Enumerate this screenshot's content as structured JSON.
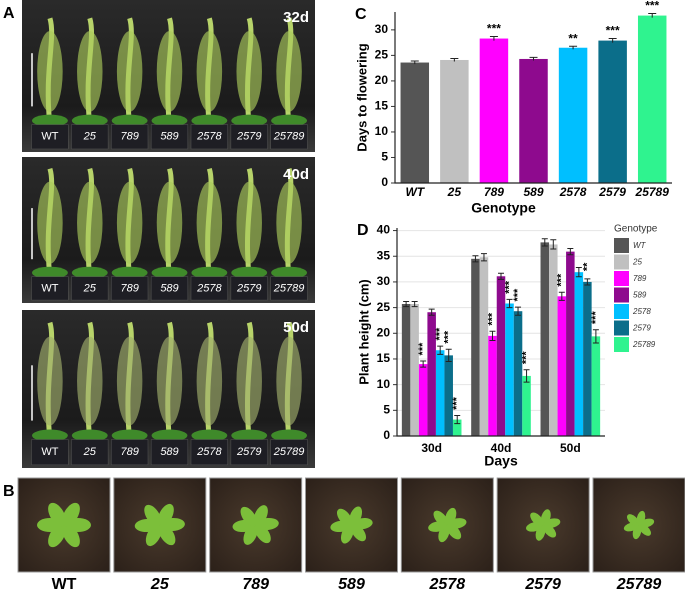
{
  "panels": {
    "A": {
      "label": "A",
      "photos": [
        {
          "day": "32d",
          "pots": [
            "WT",
            "25",
            "789",
            "589",
            "2578",
            "2579",
            "25789"
          ]
        },
        {
          "day": "40d",
          "pots": [
            "WT",
            "25",
            "789",
            "589",
            "2578",
            "2579",
            "25789"
          ]
        },
        {
          "day": "50d",
          "pots": [
            "WT",
            "25",
            "789",
            "589",
            "2578",
            "2579",
            "25789"
          ]
        }
      ]
    },
    "B": {
      "label": "B",
      "genotypes": [
        "WT",
        "25",
        "789",
        "589",
        "2578",
        "2579",
        "25789"
      ]
    }
  },
  "chart_data": [
    {
      "type": "bar",
      "panel_label": "C",
      "x_label": "Genotype",
      "y_label": "Days to flowering",
      "categories": [
        "WT",
        "25",
        "789",
        "589",
        "2578",
        "2579",
        "25789"
      ],
      "values": [
        23.6,
        24.1,
        28.3,
        24.3,
        26.5,
        27.9,
        32.8
      ],
      "errors": [
        0.3,
        0.3,
        0.4,
        0.3,
        0.3,
        0.4,
        0.4
      ],
      "annotations": [
        null,
        null,
        "***",
        null,
        "**",
        "***",
        "***"
      ],
      "colors": [
        "#555555",
        "#c0c0c0",
        "#ff00ff",
        "#8e0a8e",
        "#00bfff",
        "#0b6e8a",
        "#2ff38f"
      ],
      "ylim": [
        0,
        33.5
      ],
      "yticks": [
        0,
        5,
        10,
        15,
        20,
        25,
        30
      ],
      "grid": false
    },
    {
      "type": "grouped_bar",
      "panel_label": "D",
      "x_label": "Days",
      "y_label": "Plant height (cm)",
      "legend_title": "Genotype",
      "legend": "right",
      "categories": [
        "30d",
        "40d",
        "50d"
      ],
      "series": [
        {
          "name": "WT",
          "color": "#555555",
          "values": [
            25.7,
            34.5,
            37.7
          ],
          "errors": [
            0.5,
            0.6,
            0.7
          ],
          "annotations": [
            null,
            null,
            null
          ]
        },
        {
          "name": "25",
          "color": "#c0c0c0",
          "values": [
            25.7,
            34.8,
            37.3
          ],
          "errors": [
            0.5,
            0.7,
            0.9
          ],
          "annotations": [
            null,
            null,
            null
          ]
        },
        {
          "name": "789",
          "color": "#ff00ff",
          "values": [
            14,
            19.5,
            27.2
          ],
          "errors": [
            0.6,
            0.9,
            0.8
          ],
          "annotations": [
            "***",
            "***",
            "***"
          ]
        },
        {
          "name": "589",
          "color": "#8e0a8e",
          "values": [
            24.1,
            31.1,
            35.9
          ],
          "errors": [
            0.6,
            0.6,
            0.6
          ],
          "annotations": [
            null,
            null,
            null
          ]
        },
        {
          "name": "2578",
          "color": "#00bfff",
          "values": [
            16.7,
            25.8,
            31.9
          ],
          "errors": [
            0.8,
            0.8,
            0.9
          ],
          "annotations": [
            "***",
            "***",
            null
          ]
        },
        {
          "name": "2579",
          "color": "#0b6e8a",
          "values": [
            15.7,
            24.3,
            30
          ],
          "errors": [
            1.2,
            0.8,
            0.6
          ],
          "annotations": [
            "***",
            "***",
            "**"
          ]
        },
        {
          "name": "25789",
          "color": "#2ff38f",
          "values": [
            3.2,
            11.7,
            19.4
          ],
          "errors": [
            0.8,
            1.2,
            1.3
          ],
          "annotations": [
            "***",
            "***",
            "***"
          ]
        }
      ],
      "ylim": [
        0,
        40.5
      ],
      "yticks": [
        0,
        5,
        10,
        15,
        20,
        25,
        30,
        35,
        40
      ],
      "grid": true
    }
  ]
}
